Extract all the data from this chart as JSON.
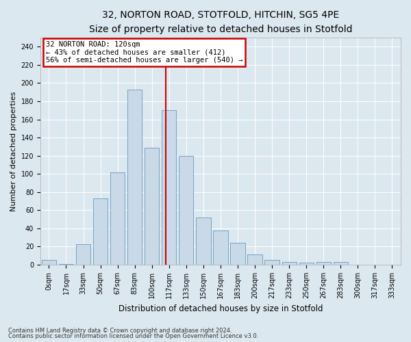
{
  "title1": "32, NORTON ROAD, STOTFOLD, HITCHIN, SG5 4PE",
  "title2": "Size of property relative to detached houses in Stotfold",
  "xlabel": "Distribution of detached houses by size in Stotfold",
  "ylabel": "Number of detached properties",
  "footer1": "Contains HM Land Registry data © Crown copyright and database right 2024.",
  "footer2": "Contains public sector information licensed under the Open Government Licence v3.0.",
  "annotation_title": "32 NORTON ROAD: 120sqm",
  "annotation_line1": "← 43% of detached houses are smaller (412)",
  "annotation_line2": "56% of semi-detached houses are larger (540) →",
  "bar_color": "#c9d9e8",
  "bar_edge_color": "#6699bb",
  "red_line_color": "#cc0000",
  "annotation_box_facecolor": "#ffffff",
  "annotation_box_edgecolor": "#cc0000",
  "categories": [
    "0sqm",
    "17sqm",
    "33sqm",
    "50sqm",
    "67sqm",
    "83sqm",
    "100sqm",
    "117sqm",
    "133sqm",
    "150sqm",
    "167sqm",
    "183sqm",
    "200sqm",
    "217sqm",
    "233sqm",
    "250sqm",
    "267sqm",
    "283sqm",
    "300sqm",
    "317sqm",
    "333sqm"
  ],
  "values": [
    5,
    1,
    23,
    73,
    102,
    193,
    129,
    170,
    120,
    52,
    38,
    24,
    11,
    5,
    3,
    2,
    3,
    3,
    0,
    0,
    0
  ],
  "red_line_index": 7,
  "ylim": [
    0,
    250
  ],
  "yticks": [
    0,
    20,
    40,
    60,
    80,
    100,
    120,
    140,
    160,
    180,
    200,
    220,
    240
  ],
  "background_color": "#dce8f0",
  "grid_color": "#ffffff",
  "title1_fontsize": 10,
  "title2_fontsize": 9,
  "axis_label_fontsize": 8.5,
  "ylabel_fontsize": 8,
  "tick_fontsize": 7,
  "annotation_fontsize": 7.5,
  "footer_fontsize": 6
}
